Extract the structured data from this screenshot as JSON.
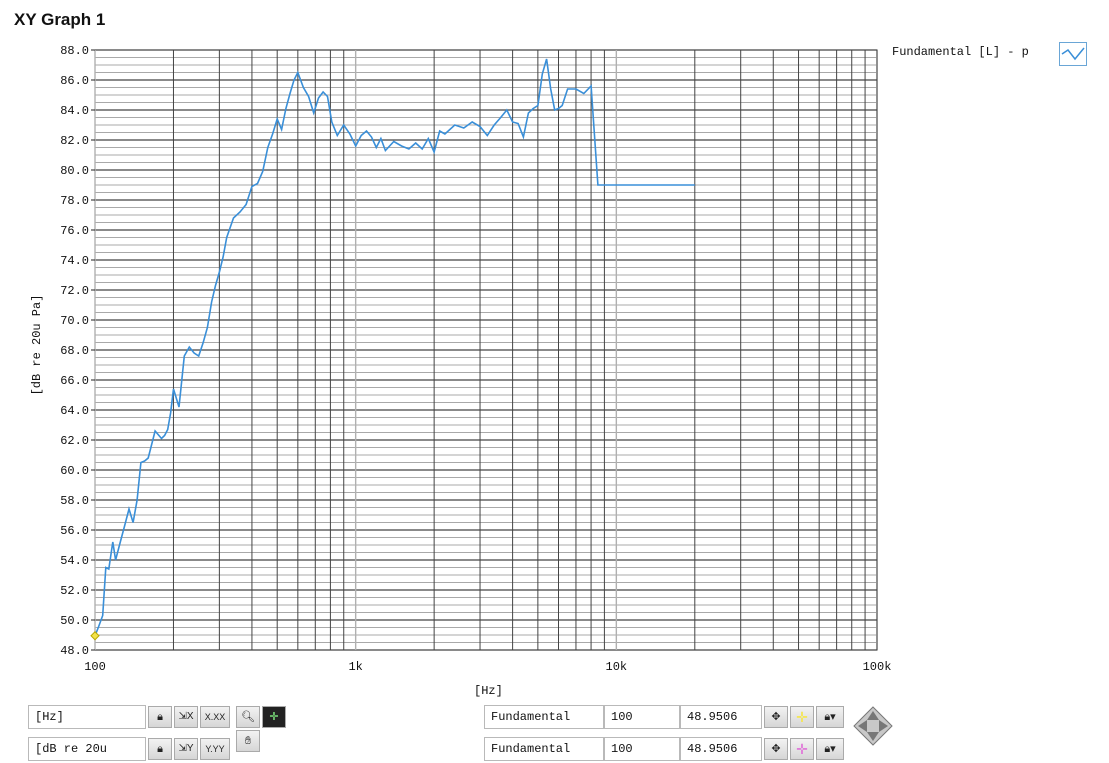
{
  "window": {
    "title": "XY Graph 1"
  },
  "legend": {
    "label": "Fundamental [L] - p",
    "swatch_color": "#3a8fd8"
  },
  "chart_data": {
    "type": "line",
    "xscale": "log",
    "xlim": [
      100,
      100000
    ],
    "ylim": [
      48,
      88
    ],
    "xlabel": "[Hz]",
    "ylabel": "[dB re 20u Pa]",
    "x_tick_labels": [
      "100",
      "1k",
      "10k",
      "100k"
    ],
    "y_tick_labels": [
      "88.0",
      "86.0",
      "84.0",
      "82.0",
      "80.0",
      "78.0",
      "76.0",
      "74.0",
      "72.0",
      "70.0",
      "68.0",
      "66.0",
      "64.0",
      "62.0",
      "60.0",
      "58.0",
      "56.0",
      "54.0",
      "52.0",
      "50.0",
      "48.0"
    ],
    "grid": true,
    "series": [
      {
        "name": "Fundamental [L] - p",
        "color": "#3a8fd8",
        "x": [
          100,
          103,
          107,
          110,
          113,
          117,
          120,
          125,
          130,
          135,
          140,
          145,
          150,
          155,
          160,
          170,
          180,
          185,
          190,
          195,
          200,
          210,
          220,
          230,
          240,
          250,
          260,
          270,
          280,
          290,
          300,
          310,
          320,
          340,
          360,
          380,
          400,
          420,
          440,
          460,
          480,
          500,
          520,
          540,
          560,
          580,
          600,
          630,
          660,
          690,
          720,
          750,
          780,
          810,
          850,
          900,
          950,
          1000,
          1050,
          1100,
          1150,
          1200,
          1250,
          1300,
          1400,
          1500,
          1600,
          1700,
          1800,
          1900,
          2000,
          2100,
          2200,
          2400,
          2600,
          2800,
          3000,
          3200,
          3400,
          3600,
          3800,
          4000,
          4200,
          4400,
          4600,
          4800,
          5000,
          5200,
          5400,
          5600,
          5800,
          6000,
          6200,
          6500,
          7000,
          7500,
          8000,
          8500,
          9000,
          9500,
          10000,
          10500,
          11000,
          11500,
          12000,
          12500,
          13000,
          13500,
          14000,
          15000,
          16000,
          16500,
          17000,
          17500,
          18000,
          18500,
          19000,
          19500,
          20000
        ],
        "y": [
          48.95,
          49.5,
          50.3,
          53.5,
          53.4,
          55.2,
          54.0,
          55.2,
          56.3,
          57.4,
          56.5,
          58.0,
          60.5,
          60.6,
          60.8,
          62.6,
          62.1,
          62.3,
          62.7,
          63.8,
          65.4,
          64.2,
          67.6,
          68.2,
          67.8,
          67.6,
          68.5,
          69.5,
          71.2,
          72.3,
          73.2,
          74.2,
          75.5,
          76.8,
          77.2,
          77.7,
          78.9,
          79.1,
          79.9,
          81.5,
          82.4,
          83.4,
          82.7,
          84.1,
          85.1,
          86.0,
          86.5,
          85.5,
          84.9,
          83.8,
          84.8,
          85.2,
          84.9,
          83.2,
          82.3,
          83.0,
          82.4,
          81.6,
          82.3,
          82.6,
          82.2,
          81.5,
          82.1,
          81.3,
          81.9,
          81.6,
          81.4,
          81.8,
          81.4,
          82.1,
          81.2,
          82.6,
          82.4,
          83.0,
          82.8,
          83.2,
          82.9,
          82.3,
          83.0,
          83.5,
          84.0,
          83.2,
          83.1,
          82.2,
          83.8,
          84.1,
          84.3,
          86.4,
          87.4,
          85.4,
          84.0,
          84.1,
          84.3,
          85.4,
          85.4,
          85.1,
          85.6,
          79.0,
          79.0,
          79.0,
          79.0,
          79.0,
          79.0,
          79.0,
          79.0,
          79.0,
          79.0,
          79.0,
          79.0,
          79.0,
          79.0,
          79.0,
          79.0,
          79.0,
          79.0,
          79.0,
          79.0,
          79.0,
          79.0
        ]
      }
    ]
  },
  "controls": {
    "x_axis_unit": "[Hz]",
    "y_axis_unit": "[dB re 20u",
    "cursor_rows": [
      {
        "name": "Fundamental",
        "x_value": "100",
        "y_value": "48.9506",
        "color": "#f5e64a"
      },
      {
        "name": "Fundamental",
        "x_value": "100",
        "y_value": "48.9506",
        "color": "#e070d8"
      }
    ],
    "toolbar_labels": {
      "x_scale_fmt": "X.XX",
      "y_scale_fmt": "Y.YY"
    }
  }
}
